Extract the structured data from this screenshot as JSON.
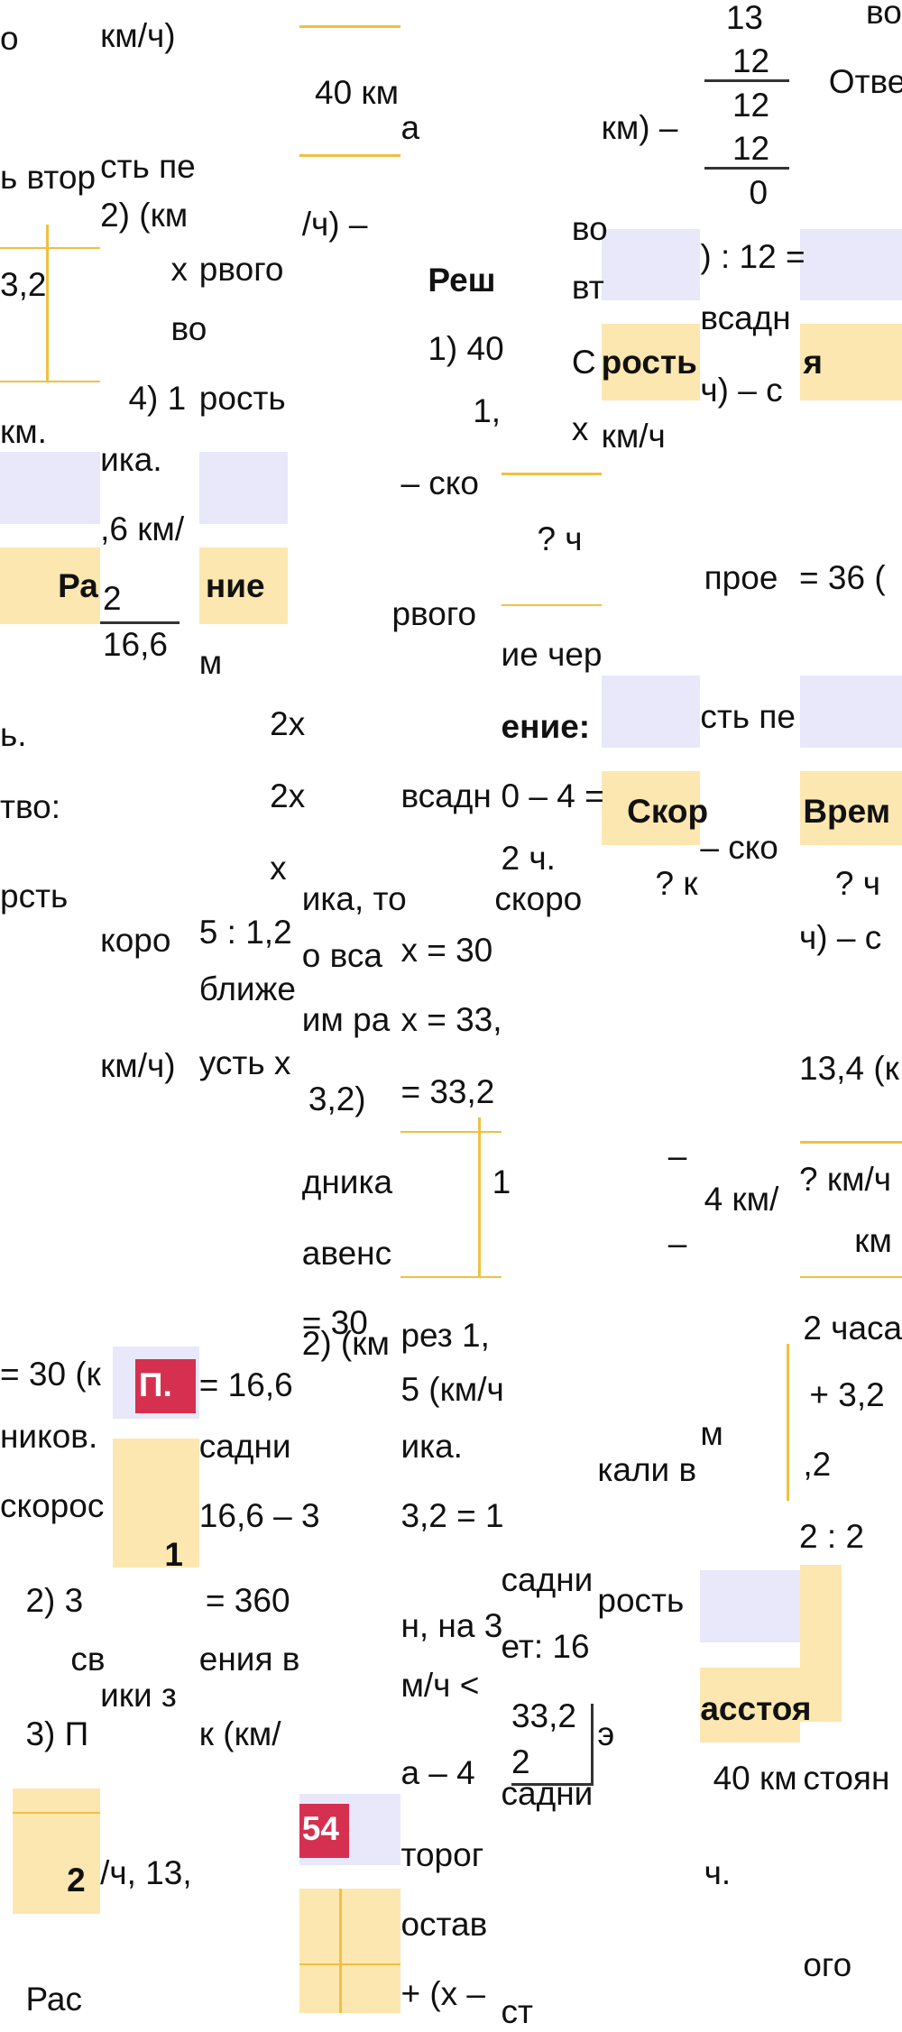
{
  "fragments": [
    "о",
    "км/ч)",
    "40 км",
    "а",
    "13",
    "12",
    "12",
    "12",
    "0",
    "во",
    "Отве",
    "км) –",
    "ь втор",
    "сть пе",
    "2) (км",
    "/ч) –",
    "во",
    "вт",
    ") : 12 =",
    "3,2",
    "х",
    "рвого",
    "Реш",
    "во",
    "1) 40",
    "всадн",
    "С",
    "рость",
    "я",
    "1,",
    "4) 1",
    "рость",
    "ч) – с",
    "км.",
    "х",
    "км/ч",
    "ика.",
    "– ско",
    ",6 км/",
    "? ч",
    "прое",
    "= 36 (",
    "Ра",
    "2",
    "16,6",
    "ние",
    "рвого",
    "ие чер",
    "м",
    "ь.",
    "2х",
    "ение:",
    "сть пе",
    "тво:",
    "2х",
    "всадн",
    "0 – 4 =",
    "Скор",
    "Врем",
    "2 ч.",
    "– ско",
    "х",
    "рсть",
    "? к",
    "? ч",
    "ика, то",
    "скоро",
    "коро",
    "5 : 1,2",
    "о вса",
    "х = 30",
    "ч) – с",
    "ближе",
    "им ра",
    "х = 33,",
    "км/ч)",
    "усть х",
    "3,2)",
    "= 33,2",
    "13,4 (к",
    "дника",
    "1",
    "–",
    "4 км/",
    "? км/ч",
    "км",
    "–",
    "авенс",
    "= 30",
    "2) (км",
    "рез 1,",
    "2 часа",
    "= 30 (к",
    "П.",
    "= 16,6",
    "5 (км/ч",
    "+ 3,2",
    "ников.",
    "садни",
    "ика.",
    "м",
    "кали в",
    ",2",
    "скорос",
    "16,6 – 3",
    "3,2 = 1",
    "1",
    "2 : 2",
    "садни",
    "рость",
    "2) 3",
    "= 360",
    "н, на 3",
    "ет: 16",
    "св",
    "ения в",
    "ики з",
    "м/ч <",
    "асстоя",
    "33,2",
    "2",
    "3) П",
    "к (км/",
    "э",
    "а – 4",
    "садни",
    "40 км",
    "стоян",
    "54",
    "2",
    "/ч, 13,",
    "торог",
    "ч.",
    "остав",
    "ого",
    "Рас",
    "+ (х –",
    "ст"
  ]
}
